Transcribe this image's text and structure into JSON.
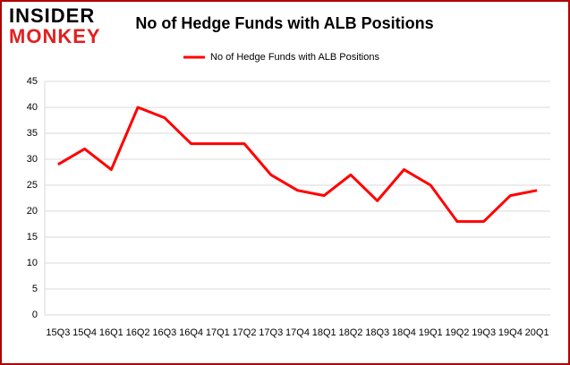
{
  "logo": {
    "line1": "INSIDER",
    "line2": "MONKEY"
  },
  "chart_data": {
    "type": "line",
    "title": "No of Hedge Funds with ALB Positions",
    "categories": [
      "15Q3",
      "15Q4",
      "16Q1",
      "16Q2",
      "16Q3",
      "16Q4",
      "17Q1",
      "17Q2",
      "17Q3",
      "17Q4",
      "18Q1",
      "18Q2",
      "18Q3",
      "18Q4",
      "19Q1",
      "19Q2",
      "19Q3",
      "19Q4",
      "20Q1"
    ],
    "series": [
      {
        "name": "No of Hedge Funds with ALB Positions",
        "color": "#ff0000",
        "values": [
          29,
          32,
          28,
          40,
          38,
          33,
          33,
          33,
          27,
          24,
          23,
          27,
          22,
          28,
          25,
          18,
          18,
          23,
          24
        ]
      }
    ],
    "ylim": [
      0,
      45
    ],
    "yticks": [
      0,
      5,
      10,
      15,
      20,
      25,
      30,
      35,
      40,
      45
    ],
    "grid": true,
    "legend": "top"
  }
}
